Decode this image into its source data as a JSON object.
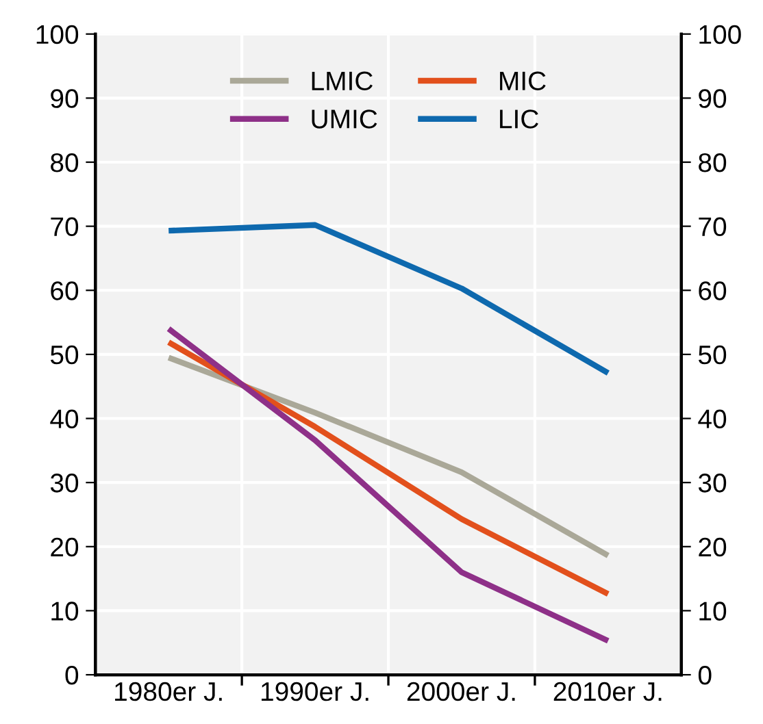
{
  "chart_data": {
    "type": "line",
    "categories": [
      "1980er J.",
      "1990er J.",
      "2000er J.",
      "2010er J."
    ],
    "series": [
      {
        "name": "LMIC",
        "color": "#aaa898",
        "values": [
          49.5,
          40.9,
          31.6,
          18.6
        ]
      },
      {
        "name": "MIC",
        "color": "#e2501c",
        "values": [
          51.9,
          38.7,
          24.3,
          12.6
        ]
      },
      {
        "name": "UMIC",
        "color": "#8e3088",
        "values": [
          54.0,
          36.6,
          16.0,
          5.3
        ]
      },
      {
        "name": "LIC",
        "color": "#0e69ae",
        "values": [
          69.3,
          70.2,
          60.3,
          47.1
        ]
      }
    ],
    "ylim": [
      0,
      100
    ],
    "yticks": [
      0,
      10,
      20,
      30,
      40,
      50,
      60,
      70,
      80,
      90,
      100
    ],
    "y2lim": [
      0,
      100
    ],
    "y2ticks": [
      0,
      10,
      20,
      30,
      40,
      50,
      60,
      70,
      80,
      90,
      100
    ],
    "grid": true,
    "legend": "top",
    "marker": "none",
    "line_style": "solid"
  }
}
